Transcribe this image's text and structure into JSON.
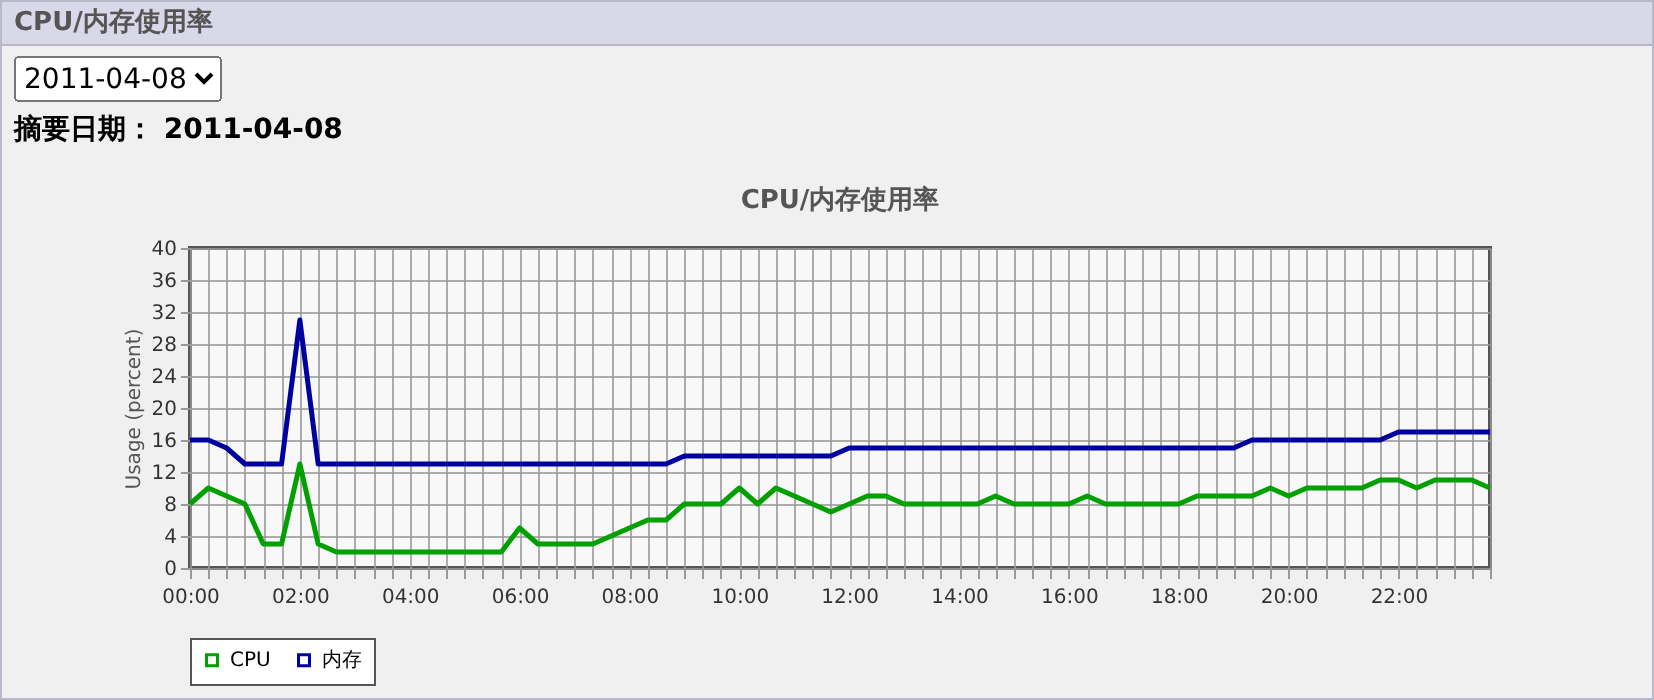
{
  "chart_data": {
    "type": "line",
    "title": "CPU/内存使用率",
    "ylabel": "Usage (percent)",
    "annotations": [
      "CPU/内存使用率",
      "2011-04-08",
      "摘要日期： 2011-04-08"
    ],
    "x": [
      "2011-04-08T00:00",
      "2011-04-08T00:20",
      "2011-04-08T00:40",
      "2011-04-08T01:00",
      "2011-04-08T01:20",
      "2011-04-08T01:40",
      "2011-04-08T02:00",
      "2011-04-08T02:20",
      "2011-04-08T02:40",
      "2011-04-08T03:00",
      "2011-04-08T03:20",
      "2011-04-08T03:40",
      "2011-04-08T04:00",
      "2011-04-08T04:20",
      "2011-04-08T04:40",
      "2011-04-08T05:00",
      "2011-04-08T05:20",
      "2011-04-08T05:40",
      "2011-04-08T06:00",
      "2011-04-08T06:20",
      "2011-04-08T06:40",
      "2011-04-08T07:00",
      "2011-04-08T07:20",
      "2011-04-08T07:40",
      "2011-04-08T08:00",
      "2011-04-08T08:20",
      "2011-04-08T08:40",
      "2011-04-08T09:00",
      "2011-04-08T09:20",
      "2011-04-08T09:40",
      "2011-04-08T10:00",
      "2011-04-08T10:20",
      "2011-04-08T10:40",
      "2011-04-08T11:00",
      "2011-04-08T11:20",
      "2011-04-08T11:40",
      "2011-04-08T12:00",
      "2011-04-08T12:20",
      "2011-04-08T12:40",
      "2011-04-08T13:00",
      "2011-04-08T13:20",
      "2011-04-08T13:40",
      "2011-04-08T14:00",
      "2011-04-08T14:20",
      "2011-04-08T14:40",
      "2011-04-08T15:00",
      "2011-04-08T15:20",
      "2011-04-08T15:40",
      "2011-04-08T16:00",
      "2011-04-08T16:20",
      "2011-04-08T16:40",
      "2011-04-08T17:00",
      "2011-04-08T17:20",
      "2011-04-08T17:40",
      "2011-04-08T18:00",
      "2011-04-08T18:20",
      "2011-04-08T18:40",
      "2011-04-08T19:00",
      "2011-04-08T19:20",
      "2011-04-08T19:40",
      "2011-04-08T20:00",
      "2011-04-08T20:20",
      "2011-04-08T20:40",
      "2011-04-08T21:00",
      "2011-04-08T21:20",
      "2011-04-08T21:40",
      "2011-04-08T22:00",
      "2011-04-08T22:20",
      "2011-04-08T22:40",
      "2011-04-08T23:00",
      "2011-04-08T23:20",
      "2011-04-08T23:40"
    ],
    "series": [
      {
        "name": "CPU",
        "color": "#00a000",
        "values": [
          8,
          10,
          9,
          8,
          3,
          3,
          13,
          3,
          2,
          2,
          2,
          2,
          2,
          2,
          2,
          2,
          2,
          2,
          5,
          3,
          3,
          3,
          3,
          4,
          5,
          6,
          6,
          8,
          8,
          8,
          10,
          8,
          10,
          9,
          8,
          7,
          8,
          9,
          9,
          8,
          8,
          8,
          8,
          8,
          9,
          8,
          8,
          8,
          8,
          9,
          8,
          8,
          8,
          8,
          8,
          9,
          9,
          9,
          9,
          10,
          9,
          10,
          10,
          10,
          10,
          11,
          11,
          10,
          11,
          11,
          11,
          10
        ]
      },
      {
        "name": "内存",
        "color": "#0000a0",
        "values": [
          16,
          16,
          15,
          13,
          13,
          13,
          31,
          13,
          13,
          13,
          13,
          13,
          13,
          13,
          13,
          13,
          13,
          13,
          13,
          13,
          13,
          13,
          13,
          13,
          13,
          13,
          13,
          14,
          14,
          14,
          14,
          14,
          14,
          14,
          14,
          14,
          15,
          15,
          15,
          15,
          15,
          15,
          15,
          15,
          15,
          15,
          15,
          15,
          15,
          15,
          15,
          15,
          15,
          15,
          15,
          15,
          15,
          15,
          16,
          16,
          16,
          16,
          16,
          16,
          16,
          16,
          17,
          17,
          17,
          17,
          17,
          17
        ]
      }
    ],
    "xlim": [
      "2011-04-08T00:00",
      "2011-04-08T23:40"
    ],
    "xticks": [
      {
        "value": "2011-04-08T00:00",
        "label": "00:00"
      },
      {
        "value": "2011-04-08T00:20",
        "label": null
      },
      {
        "value": "2011-04-08T00:40",
        "label": null
      },
      {
        "value": "2011-04-08T01:00",
        "label": null
      },
      {
        "value": "2011-04-08T01:20",
        "label": null
      },
      {
        "value": "2011-04-08T01:40",
        "label": null
      },
      {
        "value": "2011-04-08T02:00",
        "label": "02:00"
      },
      {
        "value": "2011-04-08T02:20",
        "label": null
      },
      {
        "value": "2011-04-08T02:40",
        "label": null
      },
      {
        "value": "2011-04-08T03:00",
        "label": null
      },
      {
        "value": "2011-04-08T03:20",
        "label": null
      },
      {
        "value": "2011-04-08T03:40",
        "label": null
      },
      {
        "value": "2011-04-08T04:00",
        "label": "04:00"
      },
      {
        "value": "2011-04-08T04:20",
        "label": null
      },
      {
        "value": "2011-04-08T04:40",
        "label": null
      },
      {
        "value": "2011-04-08T05:00",
        "label": null
      },
      {
        "value": "2011-04-08T05:20",
        "label": null
      },
      {
        "value": "2011-04-08T05:40",
        "label": null
      },
      {
        "value": "2011-04-08T06:00",
        "label": "06:00"
      },
      {
        "value": "2011-04-08T06:20",
        "label": null
      },
      {
        "value": "2011-04-08T06:40",
        "label": null
      },
      {
        "value": "2011-04-08T07:00",
        "label": null
      },
      {
        "value": "2011-04-08T07:20",
        "label": null
      },
      {
        "value": "2011-04-08T07:40",
        "label": null
      },
      {
        "value": "2011-04-08T08:00",
        "label": "08:00"
      },
      {
        "value": "2011-04-08T08:20",
        "label": null
      },
      {
        "value": "2011-04-08T08:40",
        "label": null
      },
      {
        "value": "2011-04-08T09:00",
        "label": null
      },
      {
        "value": "2011-04-08T09:20",
        "label": null
      },
      {
        "value": "2011-04-08T09:40",
        "label": null
      },
      {
        "value": "2011-04-08T10:00",
        "label": "10:00"
      },
      {
        "value": "2011-04-08T10:20",
        "label": null
      },
      {
        "value": "2011-04-08T10:40",
        "label": null
      },
      {
        "value": "2011-04-08T11:00",
        "label": null
      },
      {
        "value": "2011-04-08T11:20",
        "label": null
      },
      {
        "value": "2011-04-08T11:40",
        "label": null
      },
      {
        "value": "2011-04-08T12:00",
        "label": "12:00"
      },
      {
        "value": "2011-04-08T12:20",
        "label": null
      },
      {
        "value": "2011-04-08T12:40",
        "label": null
      },
      {
        "value": "2011-04-08T13:00",
        "label": null
      },
      {
        "value": "2011-04-08T13:20",
        "label": null
      },
      {
        "value": "2011-04-08T13:40",
        "label": null
      },
      {
        "value": "2011-04-08T14:00",
        "label": "14:00"
      },
      {
        "value": "2011-04-08T14:20",
        "label": null
      },
      {
        "value": "2011-04-08T14:40",
        "label": null
      },
      {
        "value": "2011-04-08T15:00",
        "label": null
      },
      {
        "value": "2011-04-08T15:20",
        "label": null
      },
      {
        "value": "2011-04-08T15:40",
        "label": null
      },
      {
        "value": "2011-04-08T16:00",
        "label": "16:00"
      },
      {
        "value": "2011-04-08T16:20",
        "label": null
      },
      {
        "value": "2011-04-08T16:40",
        "label": null
      },
      {
        "value": "2011-04-08T17:00",
        "label": null
      },
      {
        "value": "2011-04-08T17:20",
        "label": null
      },
      {
        "value": "2011-04-08T17:40",
        "label": null
      },
      {
        "value": "2011-04-08T18:00",
        "label": "18:00"
      },
      {
        "value": "2011-04-08T18:20",
        "label": null
      },
      {
        "value": "2011-04-08T18:40",
        "label": null
      },
      {
        "value": "2011-04-08T19:00",
        "label": null
      },
      {
        "value": "2011-04-08T19:20",
        "label": null
      },
      {
        "value": "2011-04-08T19:40",
        "label": null
      },
      {
        "value": "2011-04-08T20:00",
        "label": "20:00"
      },
      {
        "value": "2011-04-08T20:20",
        "label": null
      },
      {
        "value": "2011-04-08T20:40",
        "label": null
      },
      {
        "value": "2011-04-08T21:00",
        "label": null
      },
      {
        "value": "2011-04-08T21:20",
        "label": null
      },
      {
        "value": "2011-04-08T21:40",
        "label": null
      },
      {
        "value": "2011-04-08T22:00",
        "label": "22:00"
      },
      {
        "value": "2011-04-08T22:20",
        "label": null
      },
      {
        "value": "2011-04-08T22:40",
        "label": null
      },
      {
        "value": "2011-04-08T23:00",
        "label": null
      },
      {
        "value": "2011-04-08T23:20",
        "label": null
      },
      {
        "value": "2011-04-08T23:40",
        "label": null
      }
    ],
    "ylim": [
      0,
      40
    ],
    "yticks": [
      0,
      4,
      8,
      12,
      16,
      20,
      24,
      28,
      32,
      36,
      40
    ],
    "grid": true,
    "legend": "bottom",
    "marker": "none",
    "line_style": "solid"
  }
}
